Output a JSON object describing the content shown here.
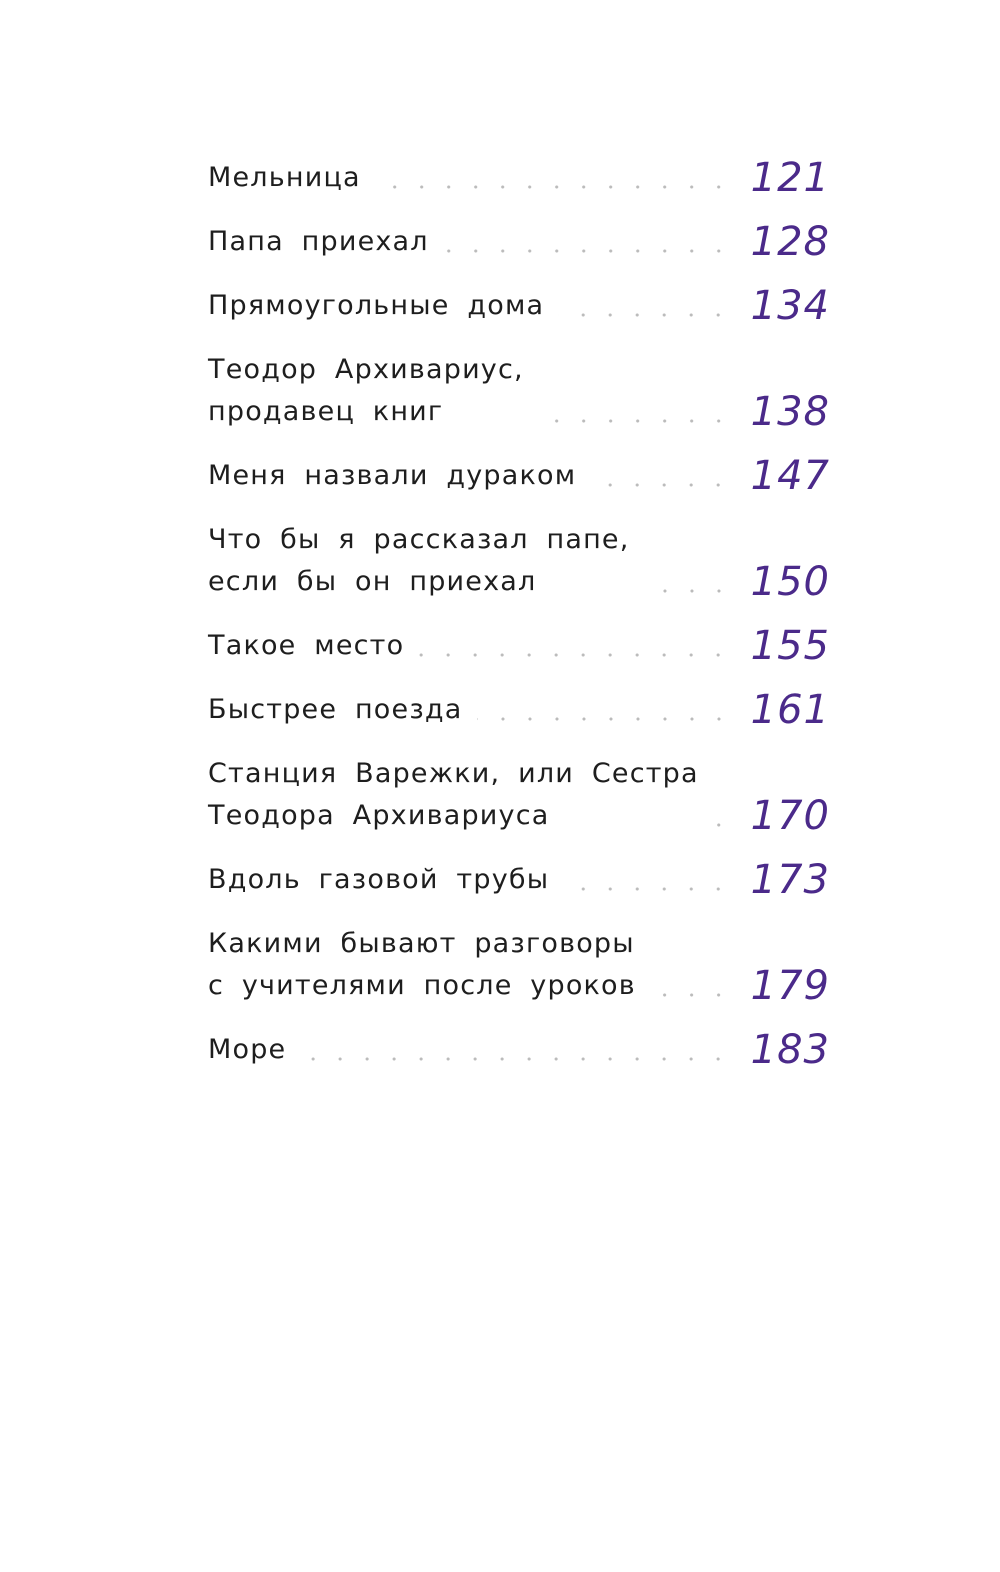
{
  "toc": {
    "accent_color": "#4b2a8a",
    "entries": [
      {
        "title": "Мельница",
        "page": "121"
      },
      {
        "title": "Папа приехал",
        "page": "128"
      },
      {
        "title": "Прямоугольные дома",
        "page": "134"
      },
      {
        "title": "Теодор Архивариус,\nпродавец книг",
        "page": "138"
      },
      {
        "title": "Меня назвали дураком",
        "page": "147"
      },
      {
        "title": "Что бы я рассказал папе,\nесли бы он приехал",
        "page": "150"
      },
      {
        "title": "Такое место",
        "page": "155"
      },
      {
        "title": "Быстрее поезда",
        "page": "161"
      },
      {
        "title": "Станция Варежки, или Сестра\nТеодора Архивариуса",
        "page": "170"
      },
      {
        "title": "Вдоль газовой трубы",
        "page": "173"
      },
      {
        "title": "Какими бывают разговоры\nс учителями после уроков",
        "page": "179"
      },
      {
        "title": "Море",
        "page": "183"
      }
    ]
  }
}
